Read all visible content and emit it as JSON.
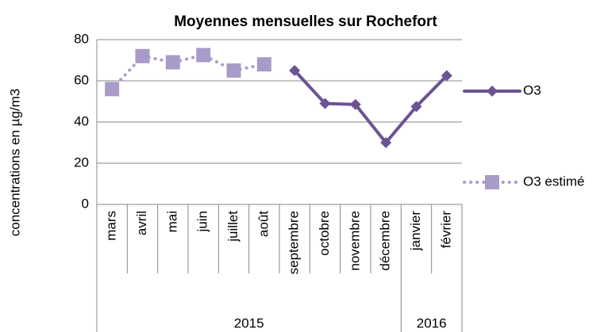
{
  "chart_data": {
    "type": "line",
    "title": "Moyennes mensuelles sur Rochefort",
    "y_label": "concentrations en µg/m3",
    "categories": [
      "mars",
      "avril",
      "mai",
      "juin",
      "juillet",
      "août",
      "septembre",
      "octobre",
      "novembre",
      "décembre",
      "janvier",
      "février"
    ],
    "x_groups": [
      {
        "label": "2015",
        "span": 10
      },
      {
        "label": "2016",
        "span": 2
      }
    ],
    "series": [
      {
        "name": "O3",
        "color": "#6b5394",
        "style": "solid",
        "marker": "diamond",
        "values": [
          null,
          null,
          null,
          null,
          null,
          null,
          65,
          49,
          48.5,
          30,
          47.5,
          62.5
        ]
      },
      {
        "name": "O3 estimé",
        "color": "#a99bc9",
        "style": "dotted",
        "marker": "square",
        "values": [
          56,
          72,
          69,
          72.5,
          65,
          68,
          null,
          null,
          null,
          null,
          null,
          null
        ]
      }
    ],
    "ylim": [
      0,
      80
    ],
    "yticks": [
      0,
      20,
      40,
      60,
      80
    ],
    "grid": true,
    "legend": "right"
  }
}
